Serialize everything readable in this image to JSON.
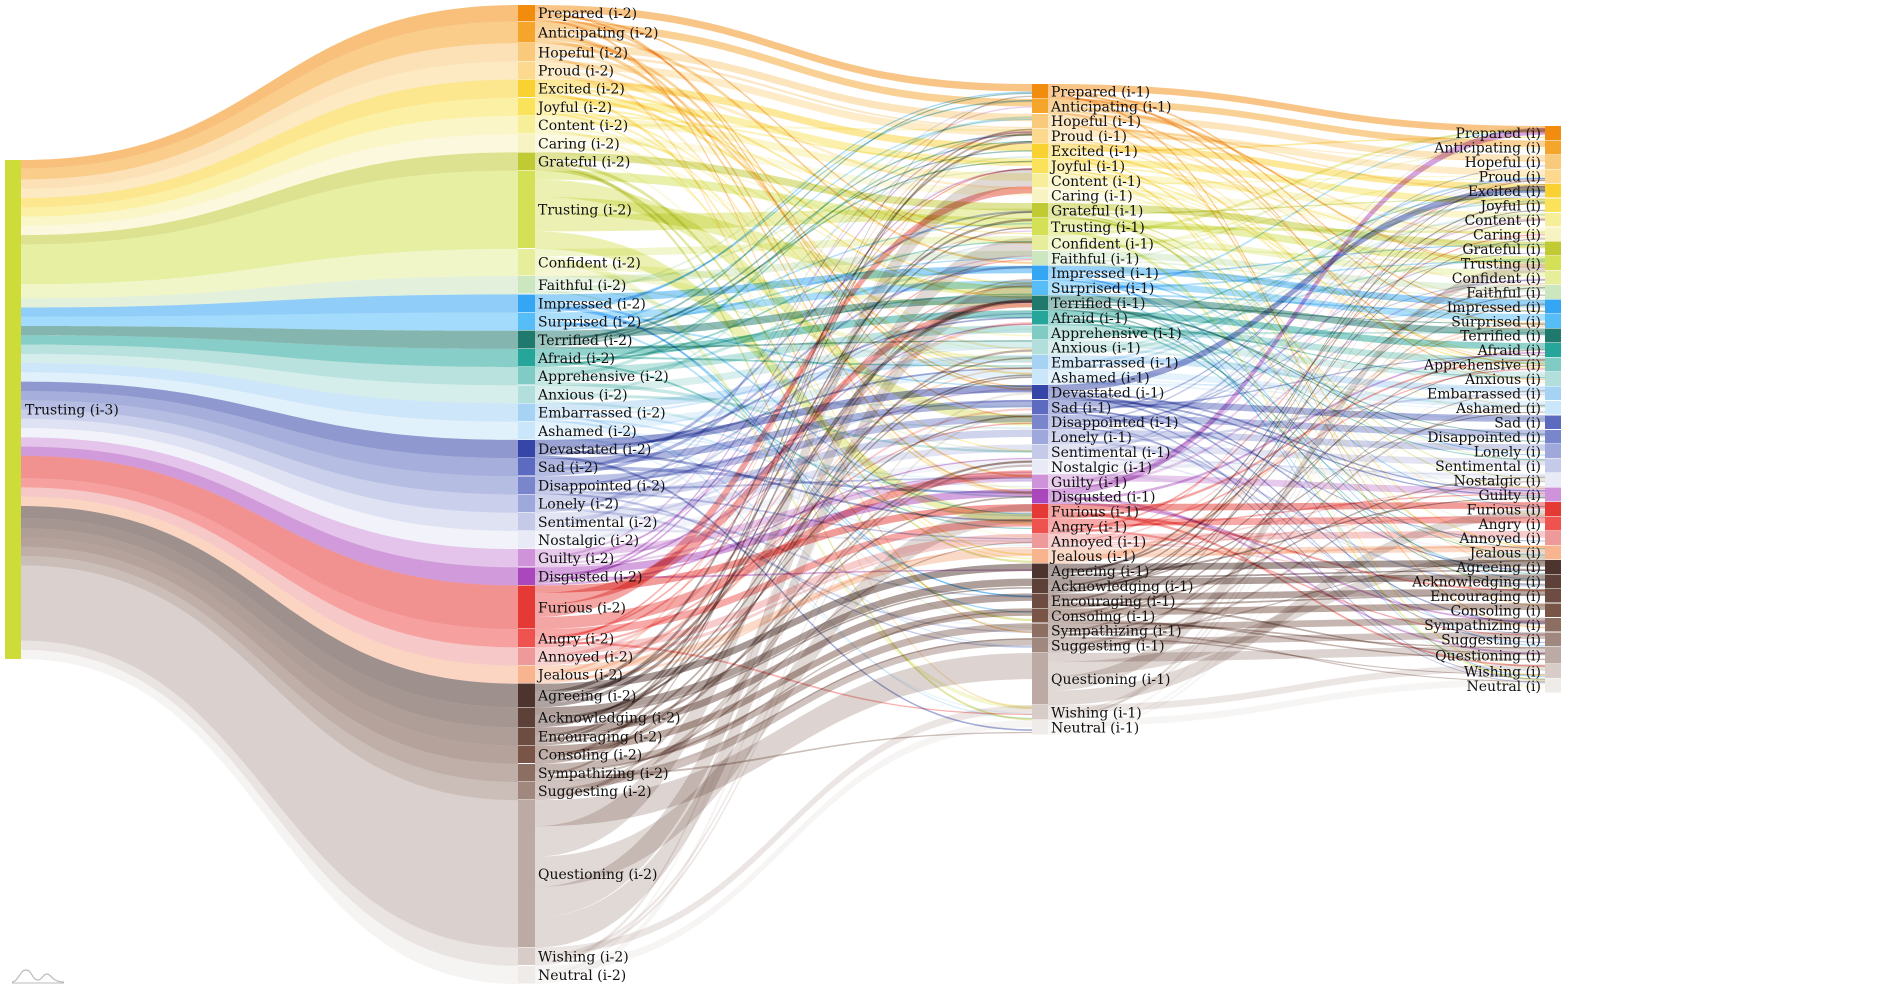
{
  "diagram": {
    "source": {
      "label": "Trusting (i-3)",
      "color": "#cddc39"
    },
    "columns": [
      {
        "suffix": "(i-2)"
      },
      {
        "suffix": "(i-1)"
      },
      {
        "suffix": "(i)"
      }
    ],
    "categories": [
      {
        "name": "Prepared",
        "color": "#f28c0e"
      },
      {
        "name": "Anticipating",
        "color": "#f5a42c"
      },
      {
        "name": "Hopeful",
        "color": "#f9c97c"
      },
      {
        "name": "Proud",
        "color": "#fcd98f"
      },
      {
        "name": "Excited",
        "color": "#f9d232"
      },
      {
        "name": "Joyful",
        "color": "#fae35a"
      },
      {
        "name": "Content",
        "color": "#f7ee9a"
      },
      {
        "name": "Caring",
        "color": "#f8f3c2"
      },
      {
        "name": "Grateful",
        "color": "#c0ca33"
      },
      {
        "name": "Trusting",
        "color": "#d4e157"
      },
      {
        "name": "Confident",
        "color": "#e6ee9c"
      },
      {
        "name": "Faithful",
        "color": "#cce6c0"
      },
      {
        "name": "Impressed",
        "color": "#34a6f4"
      },
      {
        "name": "Surprised",
        "color": "#56bdf7"
      },
      {
        "name": "Terrified",
        "color": "#1f7a6d"
      },
      {
        "name": "Afraid",
        "color": "#26a69a"
      },
      {
        "name": "Apprehensive",
        "color": "#80cbc4"
      },
      {
        "name": "Anxious",
        "color": "#b2dfdb"
      },
      {
        "name": "Embarrassed",
        "color": "#a6d2f4"
      },
      {
        "name": "Ashamed",
        "color": "#c9e6fa"
      },
      {
        "name": "Devastated",
        "color": "#3546a8"
      },
      {
        "name": "Sad",
        "color": "#5c6bc0"
      },
      {
        "name": "Disappointed",
        "color": "#7986cb"
      },
      {
        "name": "Lonely",
        "color": "#9fa8da"
      },
      {
        "name": "Sentimental",
        "color": "#c5cae9"
      },
      {
        "name": "Nostalgic",
        "color": "#e8eaf6"
      },
      {
        "name": "Guilty",
        "color": "#ce93d8"
      },
      {
        "name": "Disgusted",
        "color": "#ab47bc"
      },
      {
        "name": "Furious",
        "color": "#e53935"
      },
      {
        "name": "Angry",
        "color": "#ef5350"
      },
      {
        "name": "Annoyed",
        "color": "#ef9a9a"
      },
      {
        "name": "Jealous",
        "color": "#f8b38f"
      },
      {
        "name": "Agreeing",
        "color": "#4e342e"
      },
      {
        "name": "Acknowledging",
        "color": "#5d4037"
      },
      {
        "name": "Encouraging",
        "color": "#6d4c41"
      },
      {
        "name": "Consoling",
        "color": "#795548"
      },
      {
        "name": "Sympathizing",
        "color": "#8d6e63"
      },
      {
        "name": "Suggesting",
        "color": "#a1887f"
      },
      {
        "name": "Questioning",
        "color": "#bcaaa4"
      },
      {
        "name": "Wishing",
        "color": "#d7ccc8"
      },
      {
        "name": "Neutral",
        "color": "#efebe9"
      }
    ],
    "column_weights": [
      [
        0.9,
        1.2,
        1.0,
        1.0,
        1.0,
        1.0,
        1.0,
        1.0,
        1.0,
        4.3,
        1.5,
        1.0,
        1.0,
        1.0,
        1.0,
        1.0,
        1.0,
        1.0,
        1.0,
        1.0,
        1.0,
        1.0,
        1.0,
        1.0,
        1.0,
        1.0,
        1.0,
        1.0,
        2.4,
        1.0,
        1.0,
        1.0,
        1.3,
        1.1,
        1.0,
        1.0,
        1.0,
        1.0,
        8.1,
        1.0,
        1.0
      ],
      [
        1.0,
        1.0,
        1.0,
        1.0,
        1.0,
        1.0,
        1.0,
        1.0,
        1.0,
        1.2,
        1.0,
        1.0,
        1.0,
        1.0,
        1.0,
        1.0,
        1.0,
        1.0,
        1.0,
        1.0,
        1.0,
        1.0,
        1.0,
        1.0,
        1.0,
        1.0,
        1.0,
        1.0,
        1.0,
        1.0,
        1.0,
        1.0,
        1.0,
        1.0,
        1.0,
        1.0,
        1.0,
        1.0,
        3.5,
        1.0,
        1.0
      ],
      [
        1.0,
        1.0,
        1.0,
        1.0,
        1.0,
        1.0,
        1.0,
        1.0,
        1.0,
        1.0,
        1.0,
        1.0,
        1.0,
        1.0,
        1.0,
        1.0,
        1.0,
        1.0,
        1.0,
        1.0,
        0,
        1.0,
        1.0,
        1.0,
        1.0,
        1.0,
        1.0,
        0,
        1.0,
        1.0,
        1.0,
        1.0,
        1.0,
        1.0,
        1.0,
        1.0,
        1.0,
        1.0,
        1.2,
        1.0,
        1.0
      ]
    ]
  }
}
